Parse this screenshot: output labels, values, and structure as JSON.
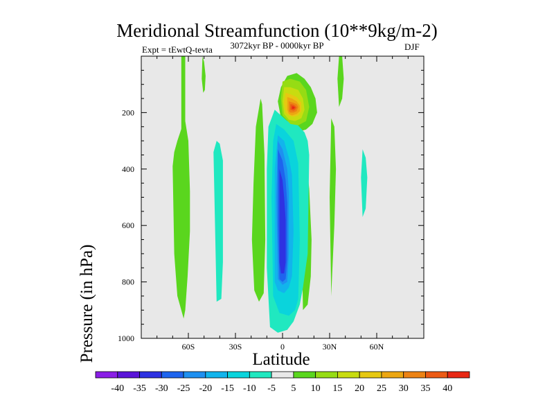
{
  "chart_data": {
    "type": "contour",
    "title": "Meridional Streamfunction (10**9kg/m-2)",
    "subtitle_left": "Expt = tEwtQ-tevta",
    "subtitle_center": "3072kyr BP - 0000kyr BP",
    "subtitle_right": "DJF",
    "xlabel": "Latitude",
    "ylabel": "Pressure (in hPa)",
    "xlim": [
      -90,
      90
    ],
    "ylim": [
      1000,
      0
    ],
    "x_ticks": [
      {
        "value": -60,
        "label": "60S"
      },
      {
        "value": -30,
        "label": "30S"
      },
      {
        "value": 0,
        "label": "0"
      },
      {
        "value": 30,
        "label": "30N"
      },
      {
        "value": 60,
        "label": "60N"
      }
    ],
    "y_ticks": [
      {
        "value": 200,
        "label": "200"
      },
      {
        "value": 400,
        "label": "400"
      },
      {
        "value": 600,
        "label": "600"
      },
      {
        "value": 800,
        "label": "800"
      },
      {
        "value": 1000,
        "label": "1000"
      }
    ],
    "background_color": "#e8e8e8",
    "colorbar": {
      "labels": [
        "-40",
        "-35",
        "-30",
        "-25",
        "-20",
        "-15",
        "-10",
        "-5",
        "5",
        "10",
        "15",
        "20",
        "25",
        "30",
        "35",
        "40"
      ],
      "colors": [
        "#8a1ee6",
        "#5a14d8",
        "#2e32e2",
        "#1e64ee",
        "#1e90f0",
        "#12b4ec",
        "#0ad4dc",
        "#20e8c0",
        "#e8e8e8",
        "#5ad61e",
        "#96dc14",
        "#c8dc10",
        "#e6c812",
        "#eca612",
        "#ec8214",
        "#ec5a14",
        "#e82814"
      ]
    },
    "regions": [
      {
        "level": 5,
        "lon": [
          -64.5,
          -64.5,
          -63,
          -62,
          -62,
          -64.5
        ],
        "p": [
          0,
          300,
          500,
          600,
          0,
          0
        ]
      },
      {
        "level": 5,
        "lon": [
          -70,
          -69,
          -67,
          -63,
          -62,
          -60.5,
          -59,
          -59,
          -60,
          -62,
          -64,
          -67,
          -69,
          -70
        ],
        "p": [
          390,
          700,
          850,
          930,
          900,
          780,
          620,
          480,
          300,
          230,
          250,
          300,
          340,
          390
        ]
      },
      {
        "level": 5,
        "lon": [
          -51,
          -50,
          -49,
          -49.5,
          -50.5,
          -51.5,
          -51
        ],
        "p": [
          0,
          20,
          70,
          120,
          130,
          80,
          0
        ]
      },
      {
        "level": 5,
        "lon": [
          -17,
          -18.5,
          -19.5,
          -18,
          -15,
          -12,
          -11,
          -11.5,
          -13,
          -14,
          -17
        ],
        "p": [
          250,
          450,
          650,
          830,
          870,
          840,
          650,
          350,
          170,
          150,
          250
        ]
      },
      {
        "level": 5,
        "lon": [
          -3,
          -1,
          3,
          9,
          14,
          18,
          21,
          22,
          19,
          15,
          9,
          3,
          -1,
          -3
        ],
        "p": [
          160,
          110,
          70,
          60,
          80,
          110,
          150,
          200,
          240,
          260,
          270,
          260,
          220,
          160
        ]
      },
      {
        "level": 5,
        "lon": [
          11,
          14,
          17,
          18.5,
          18,
          16,
          13,
          12,
          11
        ],
        "p": [
          250,
          300,
          470,
          650,
          780,
          880,
          900,
          600,
          250
        ]
      },
      {
        "level": 5,
        "lon": [
          36,
          38,
          39,
          38,
          36,
          35,
          36
        ],
        "p": [
          0,
          0,
          80,
          150,
          180,
          80,
          0
        ]
      },
      {
        "level": 5,
        "lon": [
          31,
          33,
          34,
          33,
          31,
          30,
          31
        ],
        "p": [
          220,
          250,
          400,
          600,
          850,
          500,
          220
        ]
      },
      {
        "level": -5,
        "lon": [
          -44,
          -42,
          -40,
          -38,
          -38,
          -39,
          -42,
          -44
        ],
        "p": [
          340,
          300,
          310,
          370,
          730,
          860,
          870,
          340
        ]
      },
      {
        "level": -5,
        "lon": [
          -5,
          -3,
          3,
          9,
          14,
          16,
          17,
          16,
          13,
          11,
          7,
          3,
          -3,
          -8,
          -10,
          -10,
          -9,
          -5
        ],
        "p": [
          190,
          200,
          230,
          240,
          270,
          300,
          350,
          700,
          820,
          880,
          940,
          970,
          980,
          960,
          750,
          400,
          250,
          190
        ]
      },
      {
        "level": -5,
        "lon": [
          51,
          53,
          54,
          53,
          51,
          50,
          51
        ],
        "p": [
          330,
          360,
          430,
          540,
          570,
          430,
          330
        ]
      },
      {
        "level": -10,
        "lon": [
          -4,
          1,
          7,
          10,
          11,
          10,
          8,
          4,
          -2,
          -6,
          -7,
          -6,
          -4
        ],
        "p": [
          240,
          260,
          300,
          380,
          650,
          860,
          900,
          920,
          910,
          850,
          500,
          300,
          240
        ]
      },
      {
        "level": -15,
        "lon": [
          -3,
          1,
          4,
          6,
          7,
          6,
          4,
          1,
          -3,
          -5,
          -5,
          -3
        ],
        "p": [
          280,
          300,
          360,
          420,
          620,
          780,
          820,
          840,
          830,
          800,
          400,
          280
        ]
      },
      {
        "level": -20,
        "lon": [
          -3,
          0,
          3,
          4,
          4,
          3,
          0,
          -3,
          -4,
          -3
        ],
        "p": [
          300,
          330,
          400,
          480,
          700,
          800,
          810,
          790,
          500,
          300
        ]
      },
      {
        "level": -25,
        "lon": [
          -3,
          0,
          2,
          3,
          3,
          2,
          0,
          -2,
          -3,
          -3
        ],
        "p": [
          330,
          370,
          440,
          520,
          720,
          790,
          800,
          790,
          600,
          330
        ]
      },
      {
        "level": -30,
        "lon": [
          -2,
          0,
          1,
          2,
          2,
          1,
          -1,
          -2,
          -2
        ],
        "p": [
          400,
          440,
          500,
          580,
          730,
          770,
          770,
          730,
          400
        ]
      },
      {
        "level": 10,
        "lon": [
          0,
          5,
          11,
          15,
          17,
          15,
          10,
          5,
          0,
          -1,
          0
        ],
        "p": [
          90,
          80,
          90,
          120,
          180,
          230,
          245,
          240,
          210,
          150,
          90
        ]
      },
      {
        "level": 15,
        "lon": [
          1,
          5,
          10,
          13,
          14,
          12,
          8,
          4,
          1,
          0,
          1
        ],
        "p": [
          110,
          110,
          120,
          150,
          190,
          220,
          230,
          225,
          205,
          160,
          110
        ]
      },
      {
        "level": 20,
        "lon": [
          2,
          5,
          9,
          12,
          12,
          10,
          7,
          4,
          2,
          1,
          2
        ],
        "p": [
          130,
          135,
          145,
          165,
          195,
          210,
          215,
          210,
          200,
          165,
          130
        ]
      },
      {
        "level": 25,
        "lon": [
          3,
          6,
          9,
          11,
          11,
          9,
          6,
          4,
          3,
          3
        ],
        "p": [
          145,
          150,
          160,
          175,
          195,
          205,
          210,
          205,
          190,
          145
        ]
      },
      {
        "level": 30,
        "lon": [
          4,
          7,
          9,
          10,
          9,
          7,
          5,
          4,
          4
        ],
        "p": [
          160,
          165,
          170,
          180,
          195,
          200,
          200,
          195,
          160
        ]
      },
      {
        "level": 35,
        "lon": [
          5,
          7,
          8,
          9,
          8,
          7,
          5,
          5
        ],
        "p": [
          170,
          172,
          176,
          182,
          190,
          193,
          190,
          170
        ]
      },
      {
        "level": 40,
        "lon": [
          6,
          7,
          8,
          7,
          6,
          6
        ],
        "p": [
          178,
          178,
          182,
          187,
          187,
          178
        ]
      }
    ]
  }
}
